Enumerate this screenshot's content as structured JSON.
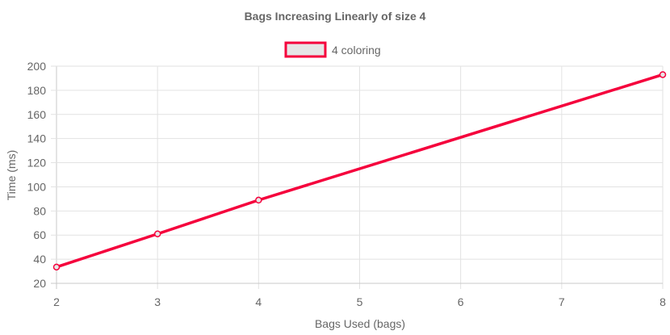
{
  "chart_data": {
    "type": "line",
    "title": "Bags Increasing Linearly of size 4",
    "xlabel": "Bags Used (bags)",
    "ylabel": "Time (ms)",
    "x_ticks": [
      2,
      3,
      4,
      5,
      6,
      7,
      8
    ],
    "y_ticks": [
      20,
      40,
      60,
      80,
      100,
      120,
      140,
      160,
      180,
      200
    ],
    "xlim": [
      2,
      8
    ],
    "ylim": [
      20,
      200
    ],
    "grid": true,
    "legend_position": "top-center",
    "series": [
      {
        "name": "4 coloring",
        "color": "#f5003c",
        "fill_color": "#e6e6e6",
        "x": [
          2,
          3,
          4,
          8
        ],
        "values": [
          33.5,
          61,
          89,
          193
        ]
      }
    ]
  }
}
